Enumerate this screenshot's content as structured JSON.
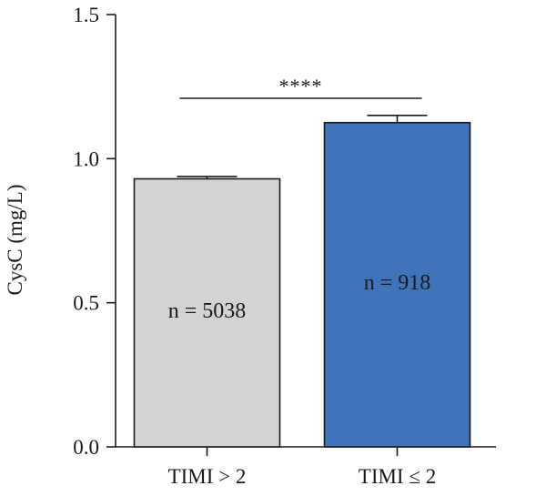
{
  "chart_data": {
    "type": "bar",
    "categories": [
      "TIMI > 2",
      "TIMI ≤ 2"
    ],
    "values": [
      0.93,
      1.125
    ],
    "errors": [
      0.008,
      0.025
    ],
    "bar_labels": [
      "n = 5038",
      "n = 918"
    ],
    "colors": [
      "#d3d3d3",
      "#3f74ba"
    ],
    "title": "",
    "xlabel": "",
    "ylabel": "CysC (mg/L)",
    "ylim": [
      0,
      1.5
    ],
    "yticks": [
      0.0,
      0.5,
      1.0,
      1.5
    ],
    "ytick_labels": [
      "0.0",
      "0.5",
      "1.0",
      "1.5"
    ],
    "grid": false,
    "significance": {
      "label": "****",
      "between": [
        0,
        1
      ]
    }
  }
}
